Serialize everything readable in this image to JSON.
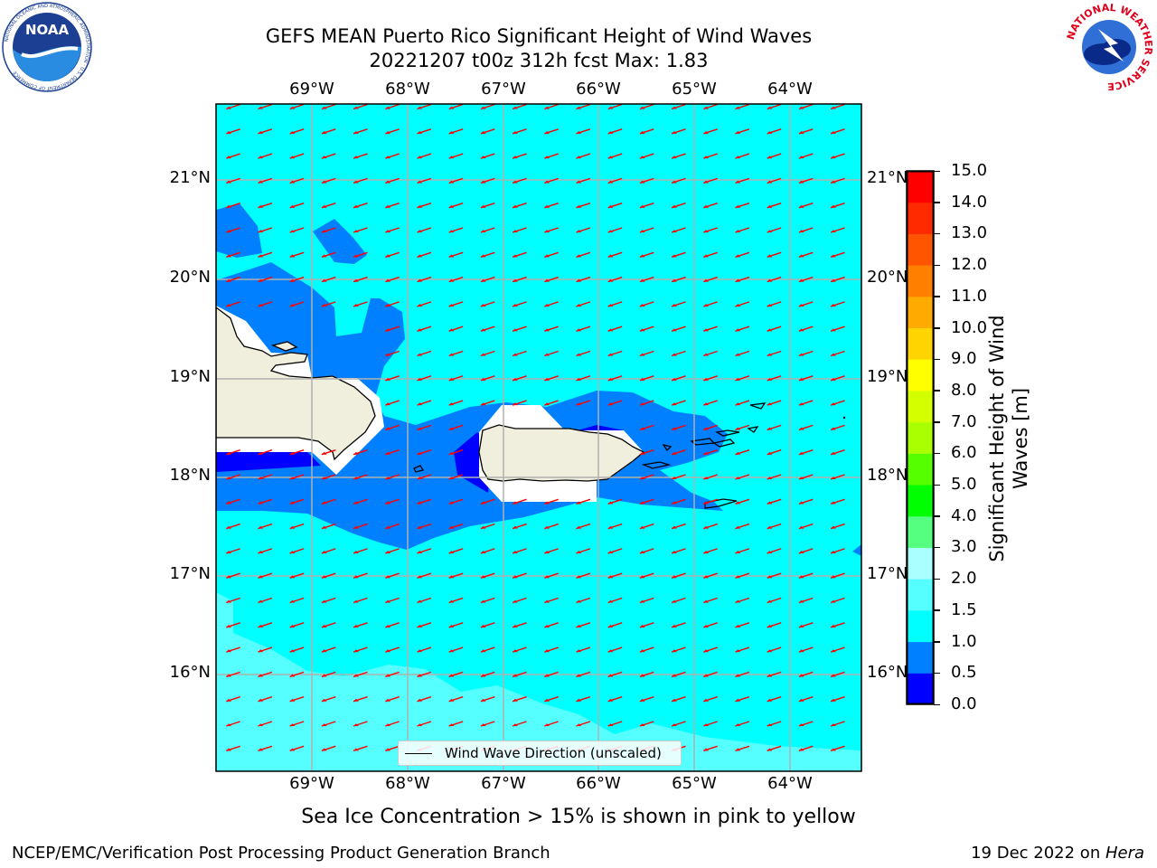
{
  "title": {
    "line1": "GEFS MEAN Puerto Rico Significant Height of Wind Waves",
    "line2": "20221207 t00z 312h fcst   Max: 1.83"
  },
  "logos": {
    "left": "noaa-logo",
    "right": "nws-logo",
    "left_text": "NOAA",
    "left_ring_text": "NATIONAL OCEANIC AND ATMOSPHERIC ADMINISTRATION · U.S. DEPARTMENT OF COMMERCE",
    "right_ring_text": "NATIONAL WEATHER SERVICE"
  },
  "map": {
    "lon_labels": [
      "69°W",
      "68°W",
      "67°W",
      "66°W",
      "65°W",
      "64°W"
    ],
    "lat_labels": [
      "21°N",
      "20°N",
      "19°N",
      "18°N",
      "17°N",
      "16°N"
    ],
    "colors": {
      "ocean_1_1_5": "#00ffff",
      "ocean_0_5_1": "#0080ff",
      "ocean_0_0_5": "#0000ff",
      "ocean_1_5_2": "#55ffff",
      "land": "#f0eedc",
      "arrow": "#ff0000",
      "grid": "#b0b0b0"
    },
    "arrow_direction": "toward southwest"
  },
  "colorbar": {
    "ticks": [
      "15.0",
      "14.0",
      "13.0",
      "12.0",
      "11.0",
      "10.0",
      "9.0",
      "8.0",
      "7.0",
      "6.0",
      "5.0",
      "4.0",
      "3.0",
      "2.0",
      "1.5",
      "1.0",
      "0.5",
      "0.0"
    ],
    "colors_bottom_to_top": [
      "#0000ff",
      "#0080ff",
      "#00ffff",
      "#55ffff",
      "#aaffff",
      "#55ff80",
      "#00ff00",
      "#55ff00",
      "#aaff00",
      "#d4ff00",
      "#ffff00",
      "#ffd400",
      "#ffaa00",
      "#ff8000",
      "#ff5500",
      "#ff2a00",
      "#ff0000"
    ],
    "label": "Significant Height of Wind Waves [m]",
    "label_line1": "Significant Height of Wind",
    "label_line2": "Waves [m]"
  },
  "legend": {
    "label": "Wind Wave Direction (unscaled)"
  },
  "note": "Sea Ice Concentration > 15% is shown in pink to yellow",
  "footer": {
    "left": "NCEP/EMC/Verification Post Processing Product Generation Branch",
    "right_date": "19 Dec 2022 on ",
    "right_host": "Hera"
  }
}
